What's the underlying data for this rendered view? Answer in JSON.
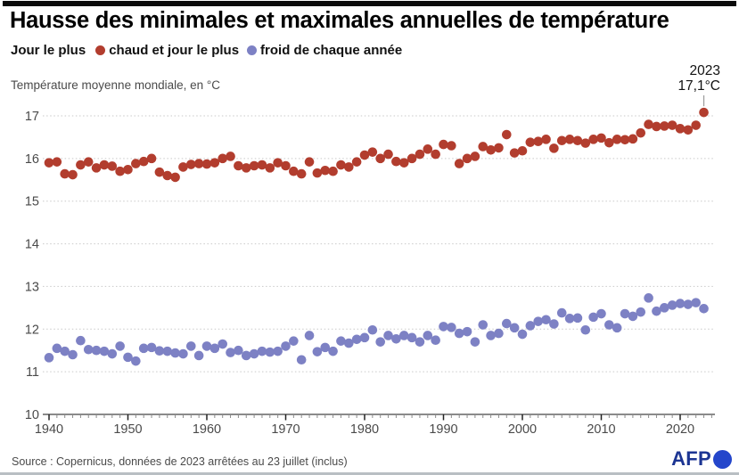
{
  "header": {
    "title": "Hausse des minimales et maximales annuelles de température",
    "legend": {
      "prefix": "Jour le plus",
      "hot_label": "chaud et jour le plus",
      "cold_label": "froid de chaque année"
    },
    "unit_label": "Température moyenne mondiale, en °C"
  },
  "annotation": {
    "year": "2023",
    "value": "17,1°C"
  },
  "footer": {
    "source": "Source : Copernicus, données de 2023 arrêtées au 23 juillet (inclus)",
    "logo": "AFP"
  },
  "colors": {
    "hot": "#b23d2e",
    "cold": "#7d81c4",
    "axis_text": "#4a4a4a",
    "gridline": "#c9c9c9",
    "axis_line": "#444444",
    "minor_tick": "#8a8a8a",
    "major_tick": "#222222",
    "leader_line": "#9a9a9a",
    "afp_blue": "#1c3593",
    "afp_ball": "#2446cb"
  },
  "chart_data": {
    "type": "scatter",
    "title": "Hausse des minimales et maximales annuelles de température",
    "ylabel": "Température moyenne mondiale, en °C",
    "xlabel": "",
    "ylim": [
      10,
      17
    ],
    "yticks": [
      10,
      11,
      12,
      13,
      14,
      15,
      16,
      17
    ],
    "xtick_labels": [
      1940,
      1950,
      1960,
      1970,
      1980,
      1990,
      2000,
      2010,
      2020
    ],
    "xtick_minor_range": [
      1940,
      2024
    ],
    "grid": "horizontal-dotted",
    "legend_position": "top",
    "annotated_point": {
      "x": 2023,
      "series": "chaud",
      "label": "2023 17,1°C"
    },
    "x": [
      1940,
      1941,
      1942,
      1943,
      1944,
      1945,
      1946,
      1947,
      1948,
      1949,
      1950,
      1951,
      1952,
      1953,
      1954,
      1955,
      1956,
      1957,
      1958,
      1959,
      1960,
      1961,
      1962,
      1963,
      1964,
      1965,
      1966,
      1967,
      1968,
      1969,
      1970,
      1971,
      1972,
      1973,
      1974,
      1975,
      1976,
      1977,
      1978,
      1979,
      1980,
      1981,
      1982,
      1983,
      1984,
      1985,
      1986,
      1987,
      1988,
      1989,
      1990,
      1991,
      1992,
      1993,
      1994,
      1995,
      1996,
      1997,
      1998,
      1999,
      2000,
      2001,
      2002,
      2003,
      2004,
      2005,
      2006,
      2007,
      2008,
      2009,
      2010,
      2011,
      2012,
      2013,
      2014,
      2015,
      2016,
      2017,
      2018,
      2019,
      2020,
      2021,
      2022,
      2023
    ],
    "series": [
      {
        "name": "jour le plus chaud",
        "color": "#b23d2e",
        "values": [
          15.9,
          15.92,
          15.64,
          15.62,
          15.85,
          15.92,
          15.78,
          15.85,
          15.82,
          15.7,
          15.74,
          15.88,
          15.93,
          16.0,
          15.68,
          15.6,
          15.56,
          15.8,
          15.86,
          15.88,
          15.87,
          15.9,
          16.0,
          16.05,
          15.83,
          15.78,
          15.83,
          15.85,
          15.78,
          15.9,
          15.83,
          15.7,
          15.64,
          15.92,
          15.66,
          15.72,
          15.7,
          15.85,
          15.8,
          15.92,
          16.08,
          16.15,
          16.0,
          16.1,
          15.93,
          15.9,
          16.0,
          16.1,
          16.22,
          16.1,
          16.33,
          16.3,
          15.88,
          16.0,
          16.05,
          16.28,
          16.2,
          16.25,
          16.56,
          16.13,
          16.18,
          16.38,
          16.4,
          16.45,
          16.24,
          16.42,
          16.45,
          16.42,
          16.36,
          16.45,
          16.48,
          16.37,
          16.45,
          16.44,
          16.46,
          16.6,
          16.8,
          16.75,
          16.76,
          16.78,
          16.7,
          16.67,
          16.78,
          17.08
        ]
      },
      {
        "name": "jour le plus froid",
        "color": "#7d81c4",
        "values": [
          11.33,
          11.55,
          11.48,
          11.4,
          11.73,
          11.52,
          11.5,
          11.48,
          11.42,
          11.6,
          11.34,
          11.25,
          11.55,
          11.57,
          11.49,
          11.48,
          11.44,
          11.42,
          11.6,
          11.38,
          11.6,
          11.55,
          11.65,
          11.45,
          11.5,
          11.38,
          11.42,
          11.48,
          11.46,
          11.48,
          11.6,
          11.72,
          11.28,
          11.85,
          11.47,
          11.57,
          11.48,
          11.72,
          11.67,
          11.76,
          11.8,
          11.98,
          11.7,
          11.85,
          11.77,
          11.85,
          11.8,
          11.7,
          11.85,
          11.74,
          12.06,
          12.04,
          11.9,
          11.94,
          11.7,
          12.1,
          11.85,
          11.9,
          12.13,
          12.03,
          11.88,
          12.08,
          12.18,
          12.22,
          12.12,
          12.38,
          12.25,
          12.26,
          11.98,
          12.28,
          12.36,
          12.1,
          12.03,
          12.36,
          12.3,
          12.4,
          12.73,
          12.42,
          12.5,
          12.56,
          12.6,
          12.58,
          12.62,
          12.48
        ]
      }
    ]
  }
}
